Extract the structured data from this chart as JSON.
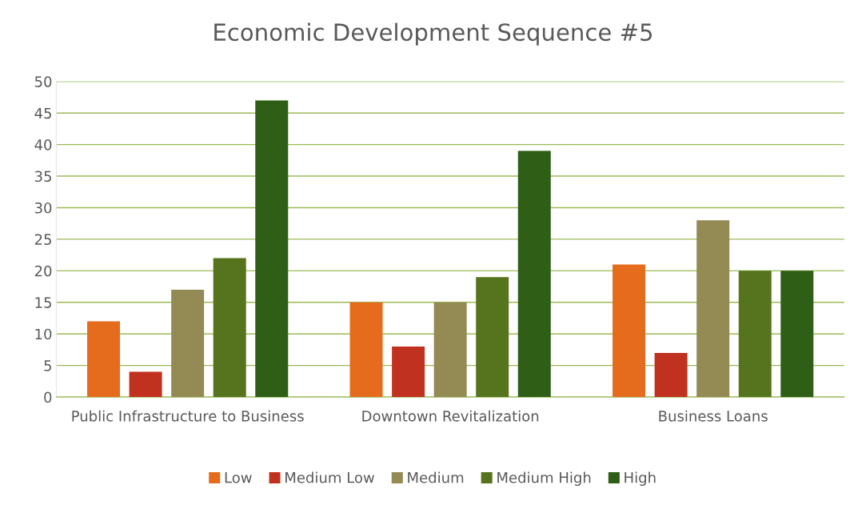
{
  "chart_data": {
    "type": "bar",
    "title": "Economic Development Sequence #5",
    "categories": [
      "Public Infrastructure to Business",
      "Downtown Revitalization",
      "Business Loans"
    ],
    "series": [
      {
        "name": "Low",
        "color": "#e46c1c",
        "values": [
          12,
          15,
          21
        ]
      },
      {
        "name": "Medium Low",
        "color": "#c1311f",
        "values": [
          4,
          8,
          7
        ]
      },
      {
        "name": "Medium",
        "color": "#948a54",
        "values": [
          17,
          15,
          28
        ]
      },
      {
        "name": "Medium High",
        "color": "#56741e",
        "values": [
          22,
          19,
          20
        ]
      },
      {
        "name": "High",
        "color": "#2f5e16",
        "values": [
          47,
          39,
          20
        ]
      }
    ],
    "ylim": [
      0,
      50
    ],
    "yticks": [
      0,
      5,
      10,
      15,
      20,
      25,
      30,
      35,
      40,
      45,
      50
    ],
    "grid": "y",
    "legend": "bottom"
  }
}
